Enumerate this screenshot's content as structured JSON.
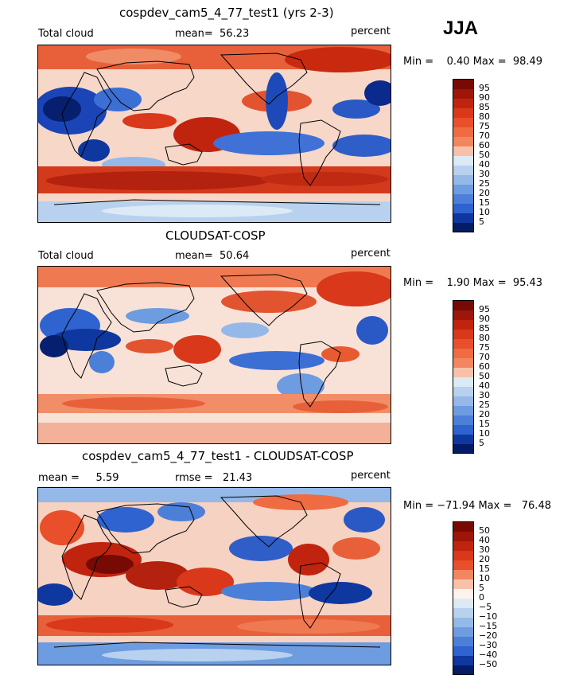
{
  "season": "JJA",
  "colors": {
    "pos": [
      "#f7dcd0",
      "#f8c2aa",
      "#f5a381",
      "#f38660",
      "#ef6b42",
      "#e84f2a",
      "#d9381a",
      "#c0240f",
      "#9e1509",
      "#780a05"
    ],
    "neg": [
      "#dceaf6",
      "#b8d1ee",
      "#94b9e8",
      "#6e9ce0",
      "#4c7fd8",
      "#2f63cf",
      "#1c4bbc",
      "#0f37a0",
      "#072a86",
      "#041c66"
    ],
    "mid": "#fdf2ec"
  },
  "panels": [
    {
      "title": "cospdev_cam5_4_77_test1 (yrs 2-3)",
      "left": "Total cloud",
      "center": "mean=  56.23",
      "right": "percent",
      "minmax": "Min =    0.40 Max =  98.49",
      "levels": [
        "95",
        "90",
        "85",
        "80",
        "75",
        "70",
        "60",
        "50",
        "40",
        "30",
        "25",
        "20",
        "15",
        "10",
        "5"
      ]
    },
    {
      "title": "CLOUDSAT-COSP",
      "left": "Total cloud",
      "center": "mean=  50.64",
      "right": "percent",
      "minmax": "Min =    1.90 Max =  95.43",
      "levels": [
        "95",
        "90",
        "85",
        "80",
        "75",
        "70",
        "60",
        "50",
        "40",
        "30",
        "25",
        "20",
        "15",
        "10",
        "5"
      ]
    },
    {
      "title": "cospdev_cam5_4_77_test1 - CLOUDSAT-COSP",
      "left": "mean =     5.59",
      "center": "rmse =   21.43",
      "right": "percent",
      "minmax": "Min = −71.94 Max =   76.48",
      "levels": [
        "50",
        "40",
        "30",
        "20",
        "15",
        "10",
        "5",
        "0",
        "−5",
        "−10",
        "−15",
        "−20",
        "−30",
        "−40",
        "−50"
      ]
    }
  ]
}
